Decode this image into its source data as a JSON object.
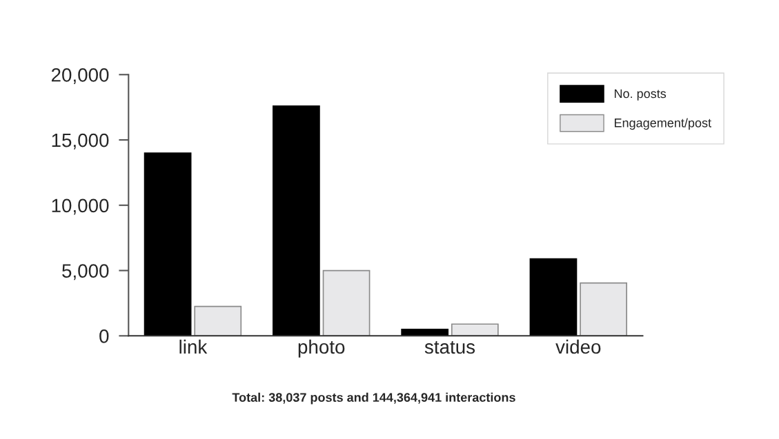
{
  "chart_data": {
    "type": "bar",
    "categories": [
      "link",
      "photo",
      "status",
      "video"
    ],
    "series": [
      {
        "name": "No. posts",
        "color": "#000000",
        "values": [
          14000,
          17600,
          500,
          5900
        ]
      },
      {
        "name": "Engagement/post",
        "color": "#e8e8ea",
        "values": [
          2250,
          5000,
          900,
          4050
        ]
      }
    ],
    "ylim": [
      0,
      20000
    ],
    "yticks": [
      {
        "value": 0,
        "label": "0"
      },
      {
        "value": 5000,
        "label": "5,000"
      },
      {
        "value": 10000,
        "label": "10,000"
      },
      {
        "value": 15000,
        "label": "15,000"
      },
      {
        "value": 20000,
        "label": "20,000"
      }
    ],
    "grid": false,
    "legend": "top right",
    "annotations": [
      "Total: 38,037 posts and 144,364,941 interactions"
    ]
  }
}
